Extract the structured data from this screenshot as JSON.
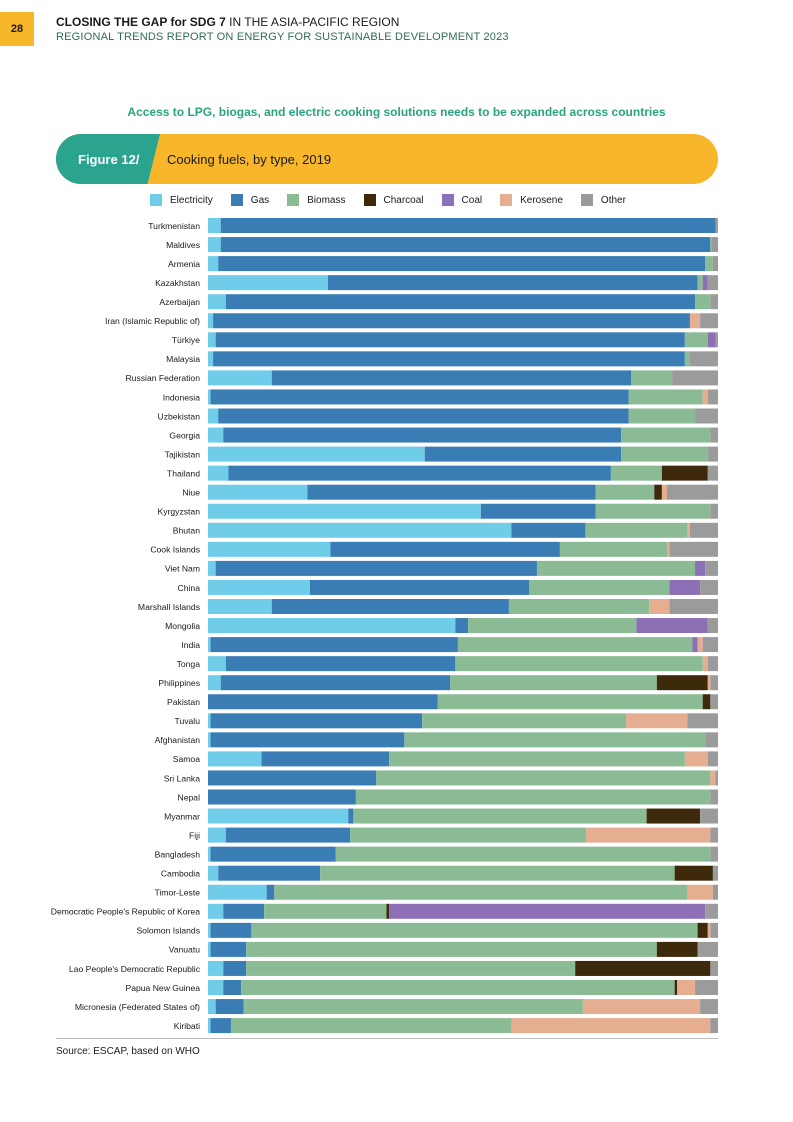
{
  "page_number": "28",
  "header": {
    "title_bold": "CLOSING THE GAP for SDG 7",
    "title_rest": " IN THE ASIA-PACIFIC REGION",
    "subtitle": "REGIONAL TRENDS REPORT ON ENERGY FOR SUSTAINABLE DEVELOPMENT 2023"
  },
  "section_subtitle": "Access to LPG, biogas, and electric cooking solutions needs to be expanded across countries",
  "figure": {
    "label": "Figure 12/",
    "title": "Cooking fuels, by type, 2019"
  },
  "source": "Source:  ESCAP, based on WHO",
  "colors": {
    "Electricity": "#6fcdea",
    "Gas": "#3a7db5",
    "Biomass": "#8abb95",
    "Charcoal": "#3c2a0a",
    "Coal": "#8c6fb5",
    "Kerosene": "#e6ae91",
    "Other": "#9b9b9b"
  },
  "chart_data": {
    "type": "bar",
    "orientation": "horizontal",
    "stacked": true,
    "title": "Cooking fuels, by type, 2019",
    "xlim": [
      0,
      100
    ],
    "unit": "%",
    "series_names": [
      "Electricity",
      "Gas",
      "Biomass",
      "Charcoal",
      "Coal",
      "Kerosene",
      "Other"
    ],
    "categories": [
      "Turkmenistan",
      "Maldives",
      "Armenia",
      "Kazakhstan",
      "Azerbaijan",
      "Iran (Islamic Republic of)",
      "Türkiye",
      "Malaysia",
      "Russian Federation",
      "Indonesia",
      "Uzbekistan",
      "Georgia",
      "Tajikistan",
      "Thailand",
      "Niue",
      "Kyrgyzstan",
      "Bhutan",
      "Cook Islands",
      "Viet Nam",
      "China",
      "Marshall Islands",
      "Mongolia",
      "India",
      "Tonga",
      "Philippines",
      "Pakistan",
      "Tuvalu",
      "Afghanistan",
      "Samoa",
      "Sri Lanka",
      "Nepal",
      "Myanmar",
      "Fiji",
      "Bangladesh",
      "Cambodia",
      "Timor-Leste",
      "Democratic People's Republic of Korea",
      "Solomon Islands",
      "Vanuatu",
      "Lao People's Democratic Republic",
      "Papua New Guinea",
      "Micronesia (Federated States of)",
      "Kiribati"
    ],
    "values": [
      [
        2.5,
        97,
        0,
        0,
        0,
        0,
        0.5
      ],
      [
        2.5,
        96,
        0.2,
        0,
        0,
        0,
        1.3
      ],
      [
        2,
        95.5,
        1.5,
        0,
        0,
        0,
        1
      ],
      [
        23.5,
        72.5,
        1,
        0,
        1,
        0,
        2
      ],
      [
        3.5,
        92,
        3,
        0,
        0,
        0,
        1.5
      ],
      [
        1,
        93.5,
        0,
        0,
        0,
        2,
        3.5
      ],
      [
        1.5,
        92,
        4.5,
        0,
        1.5,
        0,
        0.5
      ],
      [
        1,
        92.5,
        1,
        0,
        0,
        0,
        5.5
      ],
      [
        12.5,
        70.5,
        8,
        0,
        0,
        0,
        9
      ],
      [
        0.5,
        82,
        14.5,
        0,
        0,
        1,
        2
      ],
      [
        2,
        80.5,
        13,
        0,
        0,
        0,
        4.5
      ],
      [
        3,
        78,
        17.5,
        0,
        0,
        0,
        1.5
      ],
      [
        42.5,
        38.5,
        17,
        0,
        0,
        0,
        2
      ],
      [
        4,
        75,
        10,
        9,
        0,
        0,
        2
      ],
      [
        19.5,
        56.5,
        11.5,
        1.5,
        0,
        1,
        10
      ],
      [
        53.5,
        22.5,
        22.5,
        0,
        0,
        0,
        1.5
      ],
      [
        59.5,
        14.5,
        20,
        0,
        0,
        0.5,
        5.5
      ],
      [
        24,
        45,
        21,
        0,
        0,
        0.5,
        9.5
      ],
      [
        1.5,
        63,
        31,
        0,
        2,
        0,
        2.5
      ],
      [
        20,
        43,
        27.5,
        0,
        6,
        0,
        3.5
      ],
      [
        12.5,
        46.5,
        27.5,
        0,
        0,
        4,
        9.5
      ],
      [
        48.5,
        2.5,
        33,
        0,
        14,
        0,
        2
      ],
      [
        0.5,
        48.5,
        46,
        0,
        1,
        1,
        3
      ],
      [
        3.5,
        45,
        48.5,
        0,
        0,
        1,
        2
      ],
      [
        2.5,
        45,
        40.5,
        10,
        0,
        0.5,
        1.5
      ],
      [
        0,
        45,
        52,
        1.5,
        0,
        0,
        1.5
      ],
      [
        0.5,
        41.5,
        40,
        0,
        0,
        12,
        6
      ],
      [
        0.5,
        38,
        59,
        0,
        0,
        0,
        2.5
      ],
      [
        10.5,
        25,
        58,
        0,
        0,
        4.5,
        2
      ],
      [
        0,
        33,
        65.5,
        0,
        0,
        1,
        0.5
      ],
      [
        0,
        29,
        69.5,
        0,
        0,
        0,
        1.5
      ],
      [
        27.5,
        1,
        57.5,
        10.5,
        0,
        0,
        3.5
      ],
      [
        3.5,
        24.5,
        46.5,
        0,
        0,
        24.5,
        1.5
      ],
      [
        0.5,
        24.5,
        73.5,
        0,
        0,
        0,
        1.5
      ],
      [
        2,
        20,
        69.5,
        7.5,
        0,
        0,
        1
      ],
      [
        11.5,
        1.5,
        81,
        0,
        0,
        5,
        1
      ],
      [
        3,
        8,
        24,
        0.5,
        62,
        0,
        2.5
      ],
      [
        0.5,
        8,
        87.5,
        2,
        0,
        0.5,
        1.5
      ],
      [
        0.5,
        7,
        80.5,
        8,
        0,
        0,
        4
      ],
      [
        3,
        4.5,
        64.5,
        26.5,
        0,
        0,
        1.5
      ],
      [
        3,
        3.5,
        85,
        0.5,
        0,
        3.5,
        4.5
      ],
      [
        1.5,
        5.5,
        66.5,
        0,
        0,
        23,
        3.5
      ],
      [
        0.5,
        4,
        55,
        0,
        0,
        39,
        1.5
      ]
    ]
  }
}
